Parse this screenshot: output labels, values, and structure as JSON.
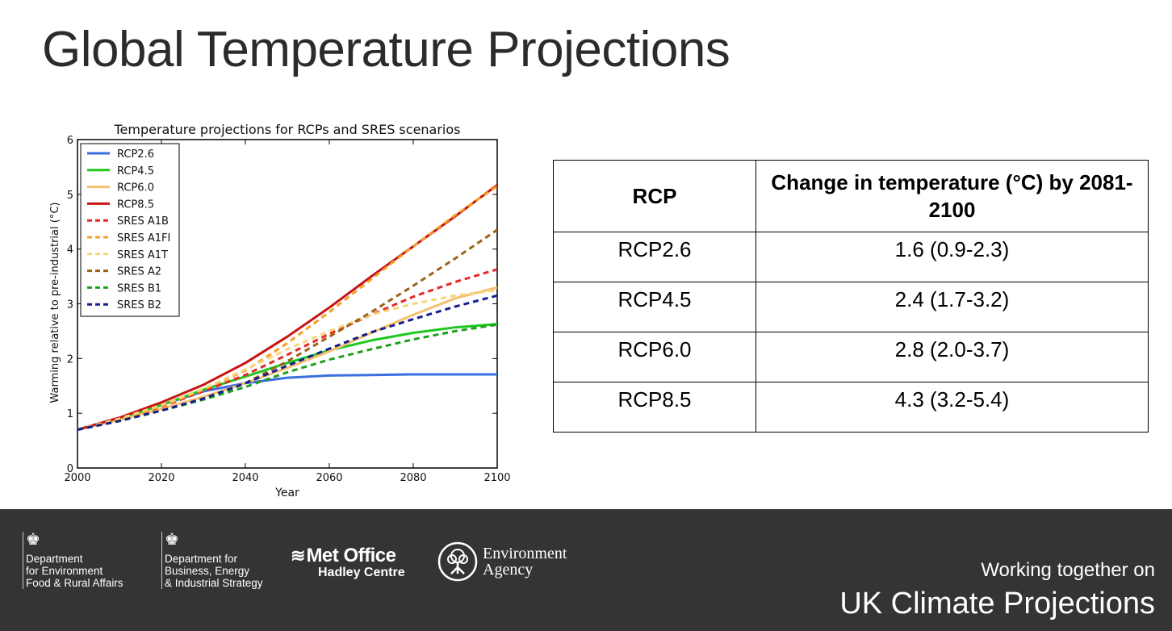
{
  "slide": {
    "title": "Global Temperature Projections"
  },
  "chart_data": {
    "type": "line",
    "title": "Temperature projections for RCPs and SRES scenarios",
    "xlabel": "Year",
    "ylabel": "Warming relative to pre-industrial (°C)",
    "xlim": [
      2000,
      2100
    ],
    "ylim": [
      0,
      6
    ],
    "xticks": [
      2000,
      2020,
      2040,
      2060,
      2080,
      2100
    ],
    "yticks": [
      0,
      1,
      2,
      3,
      4,
      5,
      6
    ],
    "grid": false,
    "legend_position": "top-left",
    "x": [
      2000,
      2010,
      2020,
      2030,
      2040,
      2050,
      2060,
      2070,
      2080,
      2090,
      2100
    ],
    "series": [
      {
        "name": "RCP2.6",
        "color": "#3b6fe0",
        "dash": false,
        "values": [
          0.7,
          0.9,
          1.15,
          1.4,
          1.55,
          1.65,
          1.69,
          1.7,
          1.71,
          1.71,
          1.71
        ]
      },
      {
        "name": "RCP4.5",
        "color": "#1ec81e",
        "dash": false,
        "values": [
          0.7,
          0.9,
          1.15,
          1.43,
          1.67,
          1.92,
          2.15,
          2.33,
          2.47,
          2.57,
          2.63
        ]
      },
      {
        "name": "RCP6.0",
        "color": "#f5c070",
        "dash": false,
        "values": [
          0.7,
          0.88,
          1.08,
          1.3,
          1.55,
          1.83,
          2.13,
          2.47,
          2.8,
          3.1,
          3.3
        ]
      },
      {
        "name": "RCP8.5",
        "color": "#c81414",
        "dash": false,
        "values": [
          0.7,
          0.92,
          1.2,
          1.52,
          1.92,
          2.4,
          2.93,
          3.5,
          4.05,
          4.6,
          5.17
        ]
      },
      {
        "name": "SRES A1B",
        "color": "#e62828",
        "dash": true,
        "values": [
          0.7,
          0.88,
          1.12,
          1.4,
          1.7,
          2.07,
          2.45,
          2.8,
          3.13,
          3.4,
          3.63
        ]
      },
      {
        "name": "SRES A1FI",
        "color": "#f5a023",
        "dash": true,
        "values": [
          0.7,
          0.88,
          1.13,
          1.43,
          1.78,
          2.28,
          2.85,
          3.45,
          4.05,
          4.62,
          5.15
        ]
      },
      {
        "name": "SRES A1T",
        "color": "#f7d57a",
        "dash": true,
        "values": [
          0.7,
          0.9,
          1.15,
          1.45,
          1.8,
          2.17,
          2.5,
          2.8,
          3.0,
          3.15,
          3.25
        ]
      },
      {
        "name": "SRES A2",
        "color": "#9a6418",
        "dash": true,
        "values": [
          0.7,
          0.86,
          1.05,
          1.25,
          1.55,
          1.95,
          2.4,
          2.85,
          3.33,
          3.83,
          4.35
        ]
      },
      {
        "name": "SRES B1",
        "color": "#1ea01e",
        "dash": true,
        "values": [
          0.7,
          0.86,
          1.05,
          1.25,
          1.48,
          1.75,
          1.98,
          2.17,
          2.35,
          2.5,
          2.62
        ]
      },
      {
        "name": "SRES B2",
        "color": "#141e8c",
        "dash": true,
        "values": [
          0.7,
          0.86,
          1.05,
          1.27,
          1.55,
          1.87,
          2.18,
          2.48,
          2.72,
          2.95,
          3.15
        ]
      }
    ]
  },
  "table": {
    "headers": [
      "RCP",
      "Change in temperature (°C) by 2081-2100"
    ],
    "rows": [
      [
        "RCP2.6",
        "1.6 (0.9-2.3)"
      ],
      [
        "RCP4.5",
        "2.4 (1.7-3.2)"
      ],
      [
        "RCP6.0",
        "2.8 (2.0-3.7)"
      ],
      [
        "RCP8.5",
        "4.3 (3.2-5.4)"
      ]
    ]
  },
  "footer": {
    "defra": {
      "line1": "Department",
      "line2": "for Environment",
      "line3": "Food & Rural Affairs"
    },
    "beis": {
      "line1": "Department for",
      "line2": "Business, Energy",
      "line3": "& Industrial Strategy"
    },
    "met": {
      "name": "Met Office",
      "sub": "Hadley Centre"
    },
    "ea": {
      "line1": "Environment",
      "line2": "Agency"
    },
    "working": "Working together on",
    "ukcp": "UK Climate Projections"
  }
}
